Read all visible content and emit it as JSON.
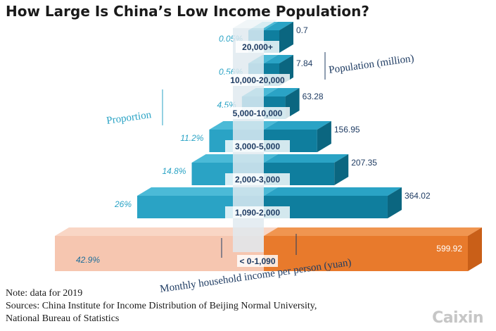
{
  "title": "How Large Is China’s Low Income Population?",
  "note": "Note: data for 2019",
  "sources": "Sources: China Institute for Income Distribution of Beijing Normal University,",
  "sources_line2": "National Bureau of Statistics",
  "brand": "Caixin",
  "colors": {
    "blue": "#2aa3c5",
    "blue_dark": "#0f7e9e",
    "blue_light": "#4bbad7",
    "peach": "#f6c6b0",
    "orange": "#e87a2c",
    "center": "#dfe9ef",
    "label_text": "#1f3c63",
    "pct_text": "#2aa3c5"
  },
  "chart_data": {
    "type": "bar",
    "orientation": "population pyramid",
    "categories": [
      "20,000+",
      "10,000-20,000",
      "5,000-10,000",
      "3,000-5,000",
      "2,000-3,000",
      "1,090-2,000",
      "< 0-1,090"
    ],
    "series": [
      {
        "name": "Proportion",
        "values": [
          "0.05%",
          "0.56%",
          "4.5%",
          "11.2%",
          "14.8%",
          "26%",
          "42.9%"
        ],
        "numeric": [
          0.05,
          0.56,
          4.5,
          11.2,
          14.8,
          26,
          42.9
        ]
      },
      {
        "name": "Population (million)",
        "values": [
          "0.7",
          "7.84",
          "63.28",
          "156.95",
          "207.35",
          "364.02",
          "599.92"
        ],
        "numeric": [
          0.7,
          7.84,
          63.28,
          156.95,
          207.35,
          364.02,
          599.92
        ]
      }
    ],
    "xlabel": "Monthly household income per person (yuan)",
    "highlight_category": "< 0-1,090"
  }
}
